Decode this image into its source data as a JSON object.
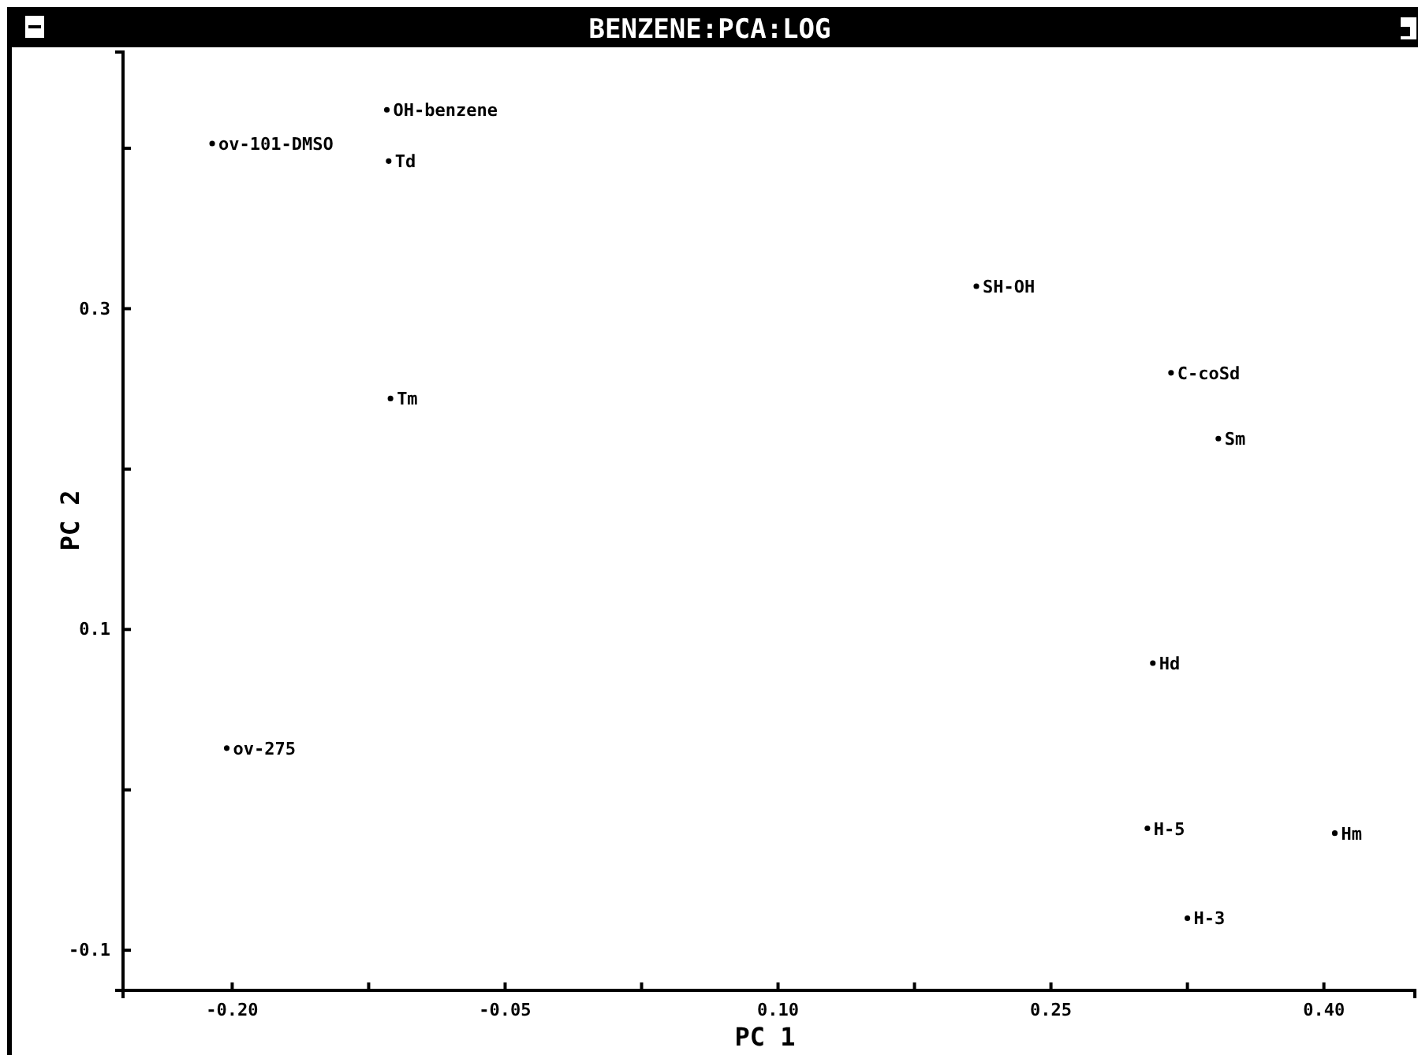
{
  "chart_data": {
    "type": "scatter",
    "title": "BENZENE:PCA:LOG",
    "xlabel": "PC 1",
    "ylabel": "PC 2",
    "marker": "circle",
    "xlim": [
      -0.26,
      0.45
    ],
    "ylim": [
      -0.125,
      0.46
    ],
    "xticks": [
      {
        "value": -0.2,
        "label": "-0.20"
      },
      {
        "value": -0.125,
        "label": null
      },
      {
        "value": -0.05,
        "label": "-0.05"
      },
      {
        "value": 0.025,
        "label": null
      },
      {
        "value": 0.1,
        "label": "0.10"
      },
      {
        "value": 0.175,
        "label": null
      },
      {
        "value": 0.25,
        "label": "0.25"
      },
      {
        "value": 0.325,
        "label": null
      },
      {
        "value": 0.4,
        "label": "0.40"
      }
    ],
    "yticks": [
      {
        "value": -0.1,
        "label": "-0.1"
      },
      {
        "value": 0,
        "label": null
      },
      {
        "value": 0.1,
        "label": "0.1"
      },
      {
        "value": 0.2,
        "label": null
      },
      {
        "value": 0.3,
        "label": "0.3"
      },
      {
        "value": 0.4,
        "label": null
      }
    ],
    "series": [
      {
        "color": "#000000",
        "x": [
          -0.211,
          -0.115,
          -0.114,
          -0.113,
          0.209,
          0.316,
          0.342,
          -0.203,
          0.306,
          0.303,
          0.406,
          0.325
        ],
        "values": [
          0.403,
          0.424,
          0.392,
          0.244,
          0.314,
          0.26,
          0.219,
          0.026,
          0.079,
          -0.024,
          -0.027,
          -0.08
        ]
      }
    ],
    "annotations": [
      {
        "text": "ov-101-DMSO",
        "x": -0.211,
        "y": 0.403
      },
      {
        "text": "OH-benzene",
        "x": -0.115,
        "y": 0.424
      },
      {
        "text": "Td",
        "x": -0.114,
        "y": 0.392
      },
      {
        "text": "Tm",
        "x": -0.113,
        "y": 0.244
      },
      {
        "text": "SH-OH",
        "x": 0.209,
        "y": 0.314
      },
      {
        "text": "C-coSd",
        "x": 0.316,
        "y": 0.26
      },
      {
        "text": "Sm",
        "x": 0.342,
        "y": 0.219
      },
      {
        "text": "ov-275",
        "x": -0.203,
        "y": 0.026
      },
      {
        "text": "Hd",
        "x": 0.306,
        "y": 0.079
      },
      {
        "text": "H-5",
        "x": 0.303,
        "y": -0.024
      },
      {
        "text": "Hm",
        "x": 0.406,
        "y": -0.027
      },
      {
        "text": "H-3",
        "x": 0.325,
        "y": -0.08
      }
    ]
  }
}
